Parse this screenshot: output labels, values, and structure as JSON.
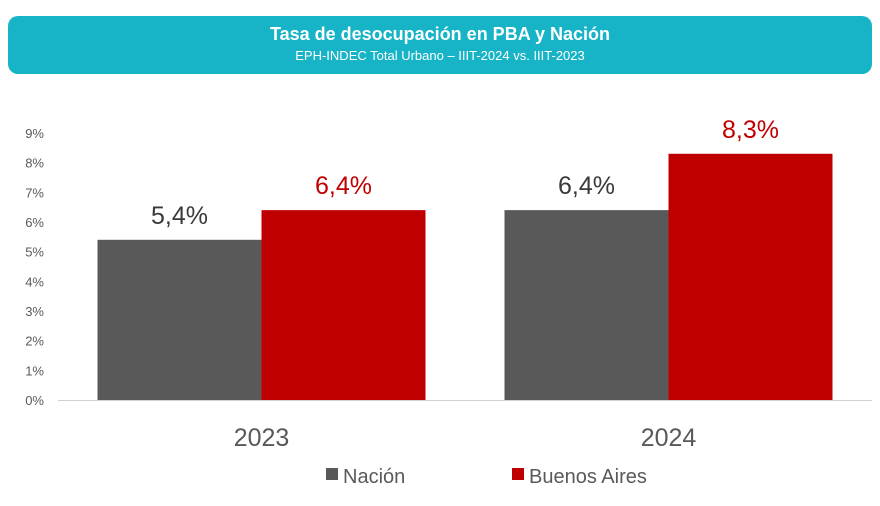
{
  "header": {
    "title": "Tasa de desocupación en PBA y Nación",
    "subtitle": "EPH-INDEC Total Urbano – IIIT-2024 vs. IIIT-2023"
  },
  "colors": {
    "banner": "#17b3c7",
    "nacion": "#595959",
    "buenos_aires": "#c00000",
    "label_dark": "#3a3a3a",
    "label_red": "#c00000"
  },
  "chart_data": {
    "type": "bar",
    "title": "Tasa de desocupación en PBA y Nación",
    "subtitle": "EPH-INDEC Total Urbano – IIIT-2024 vs. IIIT-2023",
    "categories": [
      "2023",
      "2024"
    ],
    "series": [
      {
        "name": "Nación",
        "values": [
          5.4,
          6.4
        ],
        "labels": [
          "5,4%",
          "6,4%"
        ],
        "color": "#595959"
      },
      {
        "name": "Buenos Aires",
        "values": [
          6.4,
          8.3
        ],
        "labels": [
          "6,4%",
          "8,3%"
        ],
        "color": "#c00000"
      }
    ],
    "yticks": [
      "0%",
      "1%",
      "2%",
      "3%",
      "4%",
      "5%",
      "6%",
      "7%",
      "8%",
      "9%"
    ],
    "ylim": [
      0,
      9
    ],
    "grid": false,
    "legend_position": "bottom-center",
    "xlabel": "",
    "ylabel": ""
  }
}
